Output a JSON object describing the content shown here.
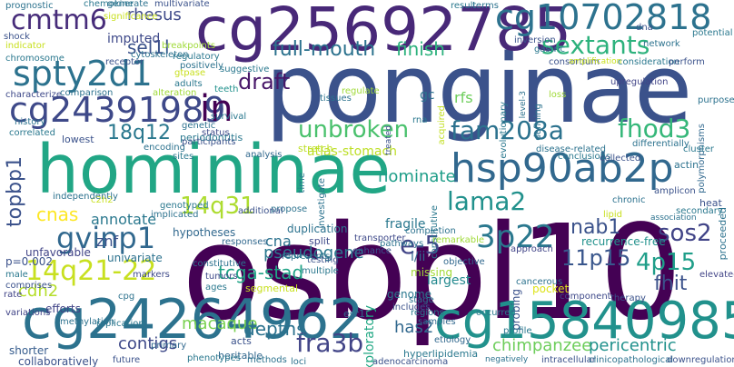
{
  "words": [
    {
      "text": "osbpl10",
      "color": "#440154"
    },
    {
      "text": "ponginae",
      "color": "#3b528b"
    },
    {
      "text": "homininae",
      "color": "#21a685"
    },
    {
      "text": "cg25692785",
      "color": "#482878"
    },
    {
      "text": "cg24264962",
      "color": "#2c728e"
    },
    {
      "text": "cg15840985",
      "color": "#21918c"
    },
    {
      "text": "hsp90ab2p",
      "color": "#31688e"
    },
    {
      "text": "cg10702818",
      "color": "#2c728e"
    },
    {
      "text": "cg24391989",
      "color": "#3e4989"
    },
    {
      "text": "cmtm6",
      "color": "#472c7a"
    },
    {
      "text": "spty2d1",
      "color": "#2c728e"
    },
    {
      "text": "fam208a",
      "color": "#2c728e"
    },
    {
      "text": "fhod3",
      "color": "#35b779"
    },
    {
      "text": "14q21-22",
      "color": "#c8e020"
    },
    {
      "text": "gvinp1",
      "color": "#31688e"
    },
    {
      "text": "lama2",
      "color": "#21918c"
    },
    {
      "text": "sos2",
      "color": "#414487"
    },
    {
      "text": "4p15",
      "color": "#1f9e89"
    },
    {
      "text": "3p22",
      "color": "#2a788e"
    },
    {
      "text": "fra3b",
      "color": "#414487"
    },
    {
      "text": "sextants",
      "color": "#2db27d"
    },
    {
      "text": "full-mouth",
      "color": "#2c728e"
    },
    {
      "text": "unbroken",
      "color": "#4ac16d"
    },
    {
      "text": "draft",
      "color": "#481769"
    },
    {
      "text": "in",
      "color": "#440154"
    },
    {
      "text": "18q12",
      "color": "#2a788e"
    },
    {
      "text": "14q31",
      "color": "#addc30"
    },
    {
      "text": "e-5",
      "color": "#414487"
    },
    {
      "text": "11p15",
      "color": "#39568c"
    },
    {
      "text": "fhit",
      "color": "#3b528b"
    },
    {
      "text": "nab1",
      "color": "#3b528b"
    },
    {
      "text": "chimpanzee",
      "color": "#6ccd5a"
    },
    {
      "text": "pericentric",
      "color": "#21918c"
    },
    {
      "text": "macaque",
      "color": "#7ad151"
    },
    {
      "text": "depths",
      "color": "#2c728e"
    },
    {
      "text": "contigs",
      "color": "#3e4989"
    },
    {
      "text": "has2",
      "color": "#31688e"
    },
    {
      "text": "cdh2",
      "color": "#b5de2b"
    },
    {
      "text": "tcga-stad",
      "color": "#20a386"
    },
    {
      "text": "pseudogene",
      "color": "#2a788e"
    },
    {
      "text": "cnas",
      "color": "#fde725"
    },
    {
      "text": "topbp1",
      "color": "#3b528b"
    },
    {
      "text": "sel1l",
      "color": "#3b528b"
    },
    {
      "text": "rhesus",
      "color": "#3e4989"
    },
    {
      "text": "finish",
      "color": "#2db27d"
    },
    {
      "text": "nominate",
      "color": "#1f9e89"
    },
    {
      "text": "atlas-stomach",
      "color": "#bddf26"
    },
    {
      "text": "annotate",
      "color": "#2a788e"
    },
    {
      "text": "cna",
      "color": "#2c728e"
    },
    {
      "text": "znf",
      "color": "#3b528b"
    },
    {
      "text": "fragile",
      "color": "#2a788e"
    },
    {
      "text": "exploratory",
      "color": "#22a884"
    },
    {
      "text": "imputed",
      "color": "#3e4989"
    },
    {
      "text": "rfs",
      "color": "#6ccd5a"
    },
    {
      "text": "gc",
      "color": "#2c728e"
    },
    {
      "text": "recurrence-free",
      "color": "#21918c"
    },
    {
      "text": "duplication",
      "color": "#2c728e"
    },
    {
      "text": "hypotheses",
      "color": "#31688e"
    },
    {
      "text": "univariate",
      "color": "#2c728e"
    },
    {
      "text": "unfavorable",
      "color": "#414487"
    },
    {
      "text": "p=0.002",
      "color": "#3b528b"
    },
    {
      "text": "i/ii",
      "color": "#31688e"
    },
    {
      "text": "missing",
      "color": "#a2da37"
    },
    {
      "text": "largest",
      "color": "#23898e"
    },
    {
      "text": "probing",
      "color": "#3b528b"
    },
    {
      "text": "pocket",
      "color": "#dde318"
    },
    {
      "text": "genome",
      "color": "#2a788e"
    },
    {
      "text": "esr1",
      "color": "#31688e"
    },
    {
      "text": "segmental",
      "color": "#c8e020"
    },
    {
      "text": "efforts",
      "color": "#414487"
    },
    {
      "text": "shorter",
      "color": "#365c8d"
    },
    {
      "text": "collaboratively",
      "color": "#3b528b"
    },
    {
      "text": "heritable",
      "color": "#31688e"
    },
    {
      "text": "hyperlipidemia",
      "color": "#2a788e"
    },
    {
      "text": "breakpoints",
      "color": "#a0da39"
    },
    {
      "text": "chromosome",
      "color": "#2a788e"
    },
    {
      "text": "lowest",
      "color": "#3b528b"
    },
    {
      "text": "history",
      "color": "#2c728e"
    },
    {
      "text": "periodontitis",
      "color": "#2a788e"
    },
    {
      "text": "stretch",
      "color": "#bddf26"
    },
    {
      "text": "teeth",
      "color": "#21918c"
    },
    {
      "text": "status",
      "color": "#3e4989"
    },
    {
      "text": "inversion",
      "color": "#3b528b"
    },
    {
      "text": "consortium",
      "color": "#3b528b"
    },
    {
      "text": "consideration",
      "color": "#2a788e"
    },
    {
      "text": "evolutionary",
      "color": "#2a788e"
    },
    {
      "text": "defining",
      "color": "#2c728e"
    },
    {
      "text": "acquired",
      "color": "#c2df23"
    },
    {
      "text": "upregulation",
      "color": "#414487"
    },
    {
      "text": "polymorphisms",
      "color": "#31688e"
    },
    {
      "text": "purpose",
      "color": "#2c728e"
    },
    {
      "text": "cluster",
      "color": "#2a788e"
    },
    {
      "text": "actin",
      "color": "#2c728e"
    },
    {
      "text": "proceeded",
      "color": "#2c728e"
    },
    {
      "text": "heat",
      "color": "#3b528b"
    },
    {
      "text": "secondary",
      "color": "#2a788e"
    },
    {
      "text": "association",
      "color": "#2c728e"
    },
    {
      "text": "elevated",
      "color": "#414487"
    },
    {
      "text": "chronic",
      "color": "#2c728e"
    },
    {
      "text": "lipid",
      "color": "#c8e020"
    },
    {
      "text": "approach",
      "color": "#414487"
    },
    {
      "text": "cancerous",
      "color": "#2c728e"
    },
    {
      "text": "component",
      "color": "#3e4989"
    },
    {
      "text": "therapy",
      "color": "#3b528b"
    },
    {
      "text": "profile",
      "color": "#2a788e"
    },
    {
      "text": "etiology",
      "color": "#31688e"
    },
    {
      "text": "intracellular",
      "color": "#3b528b"
    },
    {
      "text": "clinicopathological",
      "color": "#2c728e"
    },
    {
      "text": "downregulation",
      "color": "#3b528b"
    },
    {
      "text": "negatively",
      "color": "#2c728e"
    },
    {
      "text": "samples",
      "color": "#31688e"
    },
    {
      "text": "occurred",
      "color": "#2a788e"
    },
    {
      "text": "includes",
      "color": "#3b528b"
    },
    {
      "text": "regions",
      "color": "#2a788e"
    },
    {
      "text": "stage",
      "color": "#2c728e"
    },
    {
      "text": "objective",
      "color": "#31688e"
    },
    {
      "text": "constitutive",
      "color": "#2a788e"
    },
    {
      "text": "remarkable",
      "color": "#a0da39"
    },
    {
      "text": "completion",
      "color": "#2c728e"
    },
    {
      "text": "transporter",
      "color": "#3e4989"
    },
    {
      "text": "enhance",
      "color": "#3b528b"
    },
    {
      "text": "pathways",
      "color": "#2c728e"
    },
    {
      "text": "split",
      "color": "#3e4989"
    },
    {
      "text": "multiple",
      "color": "#2a788e"
    },
    {
      "text": "testing",
      "color": "#3b528b"
    },
    {
      "text": "represents",
      "color": "#2c728e"
    },
    {
      "text": "responses",
      "color": "#31688e"
    },
    {
      "text": "constitutive",
      "color": "#2c728e"
    },
    {
      "text": "tumors",
      "color": "#3e4989"
    },
    {
      "text": "ages",
      "color": "#2a788e"
    },
    {
      "text": "acts",
      "color": "#3b528b"
    },
    {
      "text": "loci",
      "color": "#2c728e"
    },
    {
      "text": "adenocarcinoma",
      "color": "#3b528b"
    },
    {
      "text": "methods",
      "color": "#2c728e"
    },
    {
      "text": "phenotypes",
      "color": "#2a788e"
    },
    {
      "text": "primary",
      "color": "#31688e"
    },
    {
      "text": "future",
      "color": "#3b528b"
    },
    {
      "text": "replication",
      "color": "#2a788e"
    },
    {
      "text": "methylation",
      "color": "#2c728e"
    },
    {
      "text": "variations",
      "color": "#414487"
    },
    {
      "text": "adults",
      "color": "#2a788e"
    },
    {
      "text": "cpg",
      "color": "#2c728e"
    },
    {
      "text": "markers",
      "color": "#3e4989"
    },
    {
      "text": "implicated",
      "color": "#2c728e"
    },
    {
      "text": "genotyped",
      "color": "#2a788e"
    },
    {
      "text": "c2h2",
      "color": "#c8e020"
    },
    {
      "text": "independently",
      "color": "#2c728e"
    },
    {
      "text": "male",
      "color": "#2a788e"
    },
    {
      "text": "comprises",
      "color": "#3b528b"
    },
    {
      "text": "rate",
      "color": "#414487"
    },
    {
      "text": "propose",
      "color": "#2c728e"
    },
    {
      "text": "additional",
      "color": "#3b528b"
    },
    {
      "text": "time",
      "color": "#2a788e"
    },
    {
      "text": "investigate",
      "color": "#2c728e"
    },
    {
      "text": "analysis",
      "color": "#31688e"
    },
    {
      "text": "sites",
      "color": "#2a788e"
    },
    {
      "text": "encoding",
      "color": "#2c728e"
    },
    {
      "text": "participants",
      "color": "#3b528b"
    },
    {
      "text": "genetic",
      "color": "#2c728e"
    },
    {
      "text": "survival",
      "color": "#2a788e"
    },
    {
      "text": "alteration",
      "color": "#a0da39"
    },
    {
      "text": "characterize",
      "color": "#3e4989"
    },
    {
      "text": "comparison",
      "color": "#2c728e"
    },
    {
      "text": "correlated",
      "color": "#2a788e"
    },
    {
      "text": "indicator",
      "color": "#c8e020"
    },
    {
      "text": "shock",
      "color": "#3b528b"
    },
    {
      "text": "prognostic",
      "color": "#2c728e"
    },
    {
      "text": "chemokine",
      "color": "#2a788e"
    },
    {
      "text": "generate",
      "color": "#2c728e"
    },
    {
      "text": "multivariate",
      "color": "#3b528b"
    },
    {
      "text": "significance",
      "color": "#c8e020"
    },
    {
      "text": "cytoskeleton",
      "color": "#2c728e"
    },
    {
      "text": "regulatory",
      "color": "#2a788e"
    },
    {
      "text": "receptor",
      "color": "#3b528b"
    },
    {
      "text": "positively",
      "color": "#2c728e"
    },
    {
      "text": "gtpase",
      "color": "#c8e020"
    },
    {
      "text": "suggestive",
      "color": "#2a788e"
    },
    {
      "text": "regulate",
      "color": "#a0da39"
    },
    {
      "text": "tissues",
      "color": "#2c728e"
    },
    {
      "text": "rna",
      "color": "#2a788e"
    },
    {
      "text": "treated",
      "color": "#3b528b"
    },
    {
      "text": "disease-related",
      "color": "#2c728e"
    },
    {
      "text": "conclusions",
      "color": "#2a788e"
    },
    {
      "text": "collected",
      "color": "#3b528b"
    },
    {
      "text": "differentially",
      "color": "#2c728e"
    },
    {
      "text": "loss",
      "color": "#a0da39"
    },
    {
      "text": "result",
      "color": "#2a788e"
    },
    {
      "text": "terms",
      "color": "#2c728e"
    },
    {
      "text": "dna",
      "color": "#3b528b"
    },
    {
      "text": "gastric",
      "color": "#2a788e"
    },
    {
      "text": "level-3",
      "color": "#2c728e"
    },
    {
      "text": "perform",
      "color": "#3b528b"
    },
    {
      "text": "amplification",
      "color": "#c8e020"
    },
    {
      "text": "potential",
      "color": "#2a788e"
    },
    {
      "text": "network",
      "color": "#2c728e"
    },
    {
      "text": "amplicon",
      "color": "#3b528b"
    },
    {
      "text": "cluster",
      "color": "#2c728e"
    }
  ]
}
